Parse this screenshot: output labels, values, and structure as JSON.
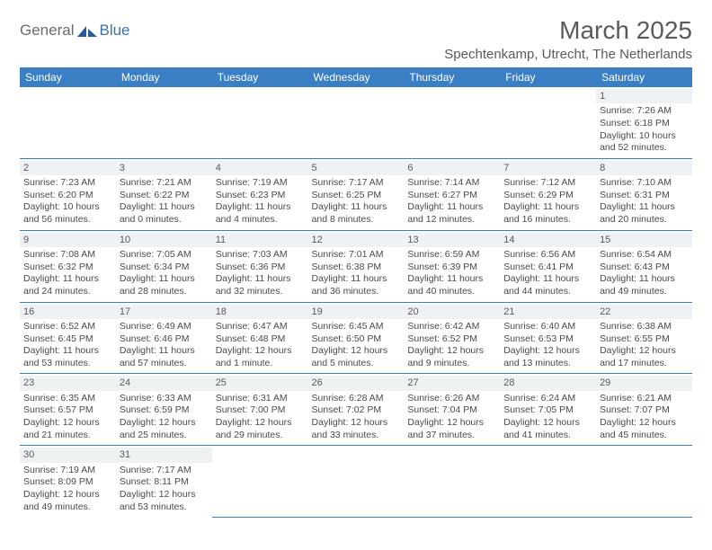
{
  "logo": {
    "word1": "General",
    "word2": "Blue"
  },
  "title": "March 2025",
  "location": "Spechtenkamp, Utrecht, The Netherlands",
  "colors": {
    "header_bg": "#3a7fc4",
    "header_text": "#ffffff",
    "daynum_bg": "#eef2f5",
    "border": "#3a7fc4",
    "title_color": "#5a5a5a",
    "logo_gray": "#6a6a6a",
    "logo_blue": "#3a6fb0"
  },
  "typography": {
    "title_fontsize": 28,
    "location_fontsize": 15,
    "header_fontsize": 12,
    "cell_fontsize": 10.5,
    "logo_fontsize": 17
  },
  "weekdays": [
    "Sunday",
    "Monday",
    "Tuesday",
    "Wednesday",
    "Thursday",
    "Friday",
    "Saturday"
  ],
  "weeks": [
    [
      null,
      null,
      null,
      null,
      null,
      null,
      {
        "n": "1",
        "sunrise": "7:26 AM",
        "sunset": "6:18 PM",
        "dl1": "Daylight: 10 hours",
        "dl2": "and 52 minutes."
      }
    ],
    [
      {
        "n": "2",
        "sunrise": "7:23 AM",
        "sunset": "6:20 PM",
        "dl1": "Daylight: 10 hours",
        "dl2": "and 56 minutes."
      },
      {
        "n": "3",
        "sunrise": "7:21 AM",
        "sunset": "6:22 PM",
        "dl1": "Daylight: 11 hours",
        "dl2": "and 0 minutes."
      },
      {
        "n": "4",
        "sunrise": "7:19 AM",
        "sunset": "6:23 PM",
        "dl1": "Daylight: 11 hours",
        "dl2": "and 4 minutes."
      },
      {
        "n": "5",
        "sunrise": "7:17 AM",
        "sunset": "6:25 PM",
        "dl1": "Daylight: 11 hours",
        "dl2": "and 8 minutes."
      },
      {
        "n": "6",
        "sunrise": "7:14 AM",
        "sunset": "6:27 PM",
        "dl1": "Daylight: 11 hours",
        "dl2": "and 12 minutes."
      },
      {
        "n": "7",
        "sunrise": "7:12 AM",
        "sunset": "6:29 PM",
        "dl1": "Daylight: 11 hours",
        "dl2": "and 16 minutes."
      },
      {
        "n": "8",
        "sunrise": "7:10 AM",
        "sunset": "6:31 PM",
        "dl1": "Daylight: 11 hours",
        "dl2": "and 20 minutes."
      }
    ],
    [
      {
        "n": "9",
        "sunrise": "7:08 AM",
        "sunset": "6:32 PM",
        "dl1": "Daylight: 11 hours",
        "dl2": "and 24 minutes."
      },
      {
        "n": "10",
        "sunrise": "7:05 AM",
        "sunset": "6:34 PM",
        "dl1": "Daylight: 11 hours",
        "dl2": "and 28 minutes."
      },
      {
        "n": "11",
        "sunrise": "7:03 AM",
        "sunset": "6:36 PM",
        "dl1": "Daylight: 11 hours",
        "dl2": "and 32 minutes."
      },
      {
        "n": "12",
        "sunrise": "7:01 AM",
        "sunset": "6:38 PM",
        "dl1": "Daylight: 11 hours",
        "dl2": "and 36 minutes."
      },
      {
        "n": "13",
        "sunrise": "6:59 AM",
        "sunset": "6:39 PM",
        "dl1": "Daylight: 11 hours",
        "dl2": "and 40 minutes."
      },
      {
        "n": "14",
        "sunrise": "6:56 AM",
        "sunset": "6:41 PM",
        "dl1": "Daylight: 11 hours",
        "dl2": "and 44 minutes."
      },
      {
        "n": "15",
        "sunrise": "6:54 AM",
        "sunset": "6:43 PM",
        "dl1": "Daylight: 11 hours",
        "dl2": "and 49 minutes."
      }
    ],
    [
      {
        "n": "16",
        "sunrise": "6:52 AM",
        "sunset": "6:45 PM",
        "dl1": "Daylight: 11 hours",
        "dl2": "and 53 minutes."
      },
      {
        "n": "17",
        "sunrise": "6:49 AM",
        "sunset": "6:46 PM",
        "dl1": "Daylight: 11 hours",
        "dl2": "and 57 minutes."
      },
      {
        "n": "18",
        "sunrise": "6:47 AM",
        "sunset": "6:48 PM",
        "dl1": "Daylight: 12 hours",
        "dl2": "and 1 minute."
      },
      {
        "n": "19",
        "sunrise": "6:45 AM",
        "sunset": "6:50 PM",
        "dl1": "Daylight: 12 hours",
        "dl2": "and 5 minutes."
      },
      {
        "n": "20",
        "sunrise": "6:42 AM",
        "sunset": "6:52 PM",
        "dl1": "Daylight: 12 hours",
        "dl2": "and 9 minutes."
      },
      {
        "n": "21",
        "sunrise": "6:40 AM",
        "sunset": "6:53 PM",
        "dl1": "Daylight: 12 hours",
        "dl2": "and 13 minutes."
      },
      {
        "n": "22",
        "sunrise": "6:38 AM",
        "sunset": "6:55 PM",
        "dl1": "Daylight: 12 hours",
        "dl2": "and 17 minutes."
      }
    ],
    [
      {
        "n": "23",
        "sunrise": "6:35 AM",
        "sunset": "6:57 PM",
        "dl1": "Daylight: 12 hours",
        "dl2": "and 21 minutes."
      },
      {
        "n": "24",
        "sunrise": "6:33 AM",
        "sunset": "6:59 PM",
        "dl1": "Daylight: 12 hours",
        "dl2": "and 25 minutes."
      },
      {
        "n": "25",
        "sunrise": "6:31 AM",
        "sunset": "7:00 PM",
        "dl1": "Daylight: 12 hours",
        "dl2": "and 29 minutes."
      },
      {
        "n": "26",
        "sunrise": "6:28 AM",
        "sunset": "7:02 PM",
        "dl1": "Daylight: 12 hours",
        "dl2": "and 33 minutes."
      },
      {
        "n": "27",
        "sunrise": "6:26 AM",
        "sunset": "7:04 PM",
        "dl1": "Daylight: 12 hours",
        "dl2": "and 37 minutes."
      },
      {
        "n": "28",
        "sunrise": "6:24 AM",
        "sunset": "7:05 PM",
        "dl1": "Daylight: 12 hours",
        "dl2": "and 41 minutes."
      },
      {
        "n": "29",
        "sunrise": "6:21 AM",
        "sunset": "7:07 PM",
        "dl1": "Daylight: 12 hours",
        "dl2": "and 45 minutes."
      }
    ],
    [
      {
        "n": "30",
        "sunrise": "7:19 AM",
        "sunset": "8:09 PM",
        "dl1": "Daylight: 12 hours",
        "dl2": "and 49 minutes."
      },
      {
        "n": "31",
        "sunrise": "7:17 AM",
        "sunset": "8:11 PM",
        "dl1": "Daylight: 12 hours",
        "dl2": "and 53 minutes."
      },
      null,
      null,
      null,
      null,
      null
    ]
  ],
  "labels": {
    "sunrise": "Sunrise: ",
    "sunset": "Sunset: "
  }
}
